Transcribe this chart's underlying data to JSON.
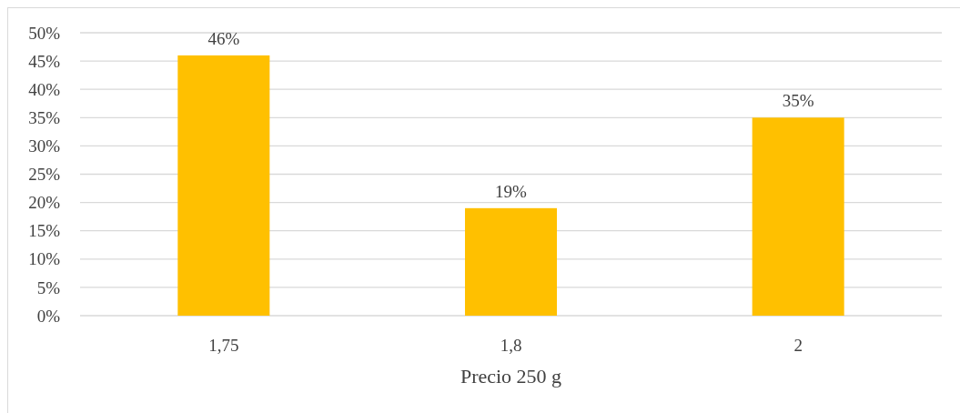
{
  "chart_data": {
    "type": "bar",
    "xlabel": "Precio 250 g",
    "categories": [
      "1,75",
      "1,8",
      "2"
    ],
    "values": [
      46,
      19,
      35
    ],
    "value_labels": [
      "46%",
      "19%",
      "35%"
    ],
    "color": "#ffc000",
    "ylim": [
      0,
      50
    ],
    "yticks": [
      {
        "value": 0,
        "label": "0%"
      },
      {
        "value": 5,
        "label": "5%"
      },
      {
        "value": 10,
        "label": "10%"
      },
      {
        "value": 15,
        "label": "15%"
      },
      {
        "value": 20,
        "label": "20%"
      },
      {
        "value": 25,
        "label": "25%"
      },
      {
        "value": 30,
        "label": "30%"
      },
      {
        "value": 35,
        "label": "35%"
      },
      {
        "value": 40,
        "label": "40%"
      },
      {
        "value": 45,
        "label": "45%"
      },
      {
        "value": 50,
        "label": "50%"
      }
    ],
    "grid": "y"
  }
}
